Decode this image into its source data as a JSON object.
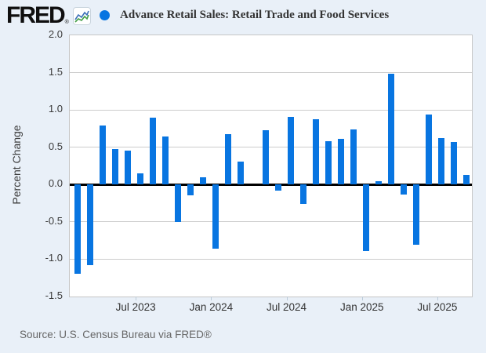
{
  "header": {
    "logo_text": "FRED",
    "logo_registered": "®",
    "title": "Advance Retail Sales: Retail Trade and Food Services"
  },
  "chart_data": {
    "type": "bar",
    "title": "Advance Retail Sales: Retail Trade and Food Services",
    "ylabel": "Percent Change",
    "ylim": [
      -1.5,
      2.0
    ],
    "y_tick_labels": [
      "2.0",
      "1.5",
      "1.0",
      "0.5",
      "0.0",
      "-0.5",
      "-1.0",
      "-1.5"
    ],
    "grid": "horizontal",
    "zero_line": true,
    "bar_color": "#0875e1",
    "legend_marker_color": "#0875e1",
    "legend_position": "top",
    "categories": [
      "Feb 2023",
      "Mar 2023",
      "Apr 2023",
      "May 2023",
      "Jun 2023",
      "Jul 2023",
      "Aug 2023",
      "Sep 2023",
      "Oct 2023",
      "Nov 2023",
      "Dec 2023",
      "Jan 2024",
      "Feb 2024",
      "Mar 2024",
      "Apr 2024",
      "May 2024",
      "Jun 2024",
      "Jul 2024",
      "Aug 2024",
      "Sep 2024",
      "Oct 2024",
      "Nov 2024",
      "Dec 2024",
      "Jan 2025",
      "Feb 2025",
      "Mar 2025",
      "Apr 2025",
      "May 2025",
      "Jun 2025",
      "Jul 2025",
      "Aug 2025",
      "Sep 2025"
    ],
    "values": [
      -1.2,
      -1.08,
      0.79,
      0.48,
      0.45,
      0.15,
      0.9,
      0.64,
      -0.5,
      -0.14,
      0.1,
      -0.86,
      0.68,
      0.31,
      0.0,
      0.73,
      -0.08,
      0.91,
      -0.26,
      0.88,
      0.58,
      0.61,
      0.74,
      -0.89,
      0.04,
      1.49,
      -0.13,
      -0.81,
      0.94,
      0.62,
      0.57,
      0.13
    ],
    "x_tick_labels": [
      "Jul 2023",
      "Jan 2024",
      "Jul 2024",
      "Jan 2025",
      "Jul 2025"
    ],
    "x_tick_month_indices": [
      5,
      11,
      17,
      23,
      29
    ]
  },
  "source": {
    "text": "Source: U.S. Census Bureau via FRED®"
  },
  "colors": {
    "page_background": "#e9f0f8",
    "plot_background": "#ffffff",
    "gridline": "#cccccc",
    "zero_line": "#000000",
    "bar": "#0875e1"
  }
}
